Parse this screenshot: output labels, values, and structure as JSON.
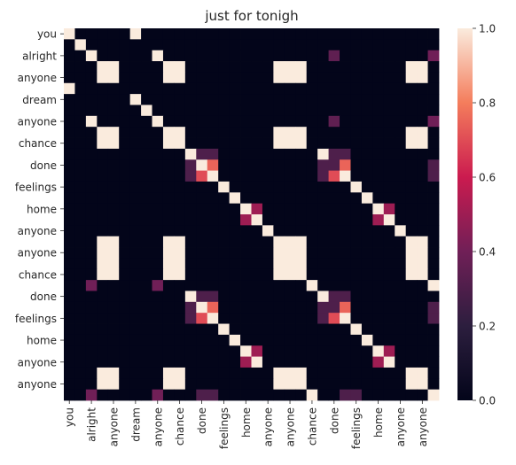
{
  "chart_data": {
    "type": "heatmap",
    "title": "just for tonigh",
    "labels": [
      "you",
      "",
      "alright",
      "",
      "anyone",
      "",
      "dream",
      "",
      "anyone",
      "",
      "chance",
      "",
      "done",
      "",
      "feelings",
      "",
      "home",
      "",
      "anyone",
      "",
      "anyone",
      "",
      "chance",
      "",
      "done",
      "",
      "feelings",
      "",
      "home",
      "",
      "anyone",
      "",
      "anyone",
      ""
    ],
    "x_tick_labels": [
      "you",
      "alright",
      "anyone",
      "dream",
      "anyone",
      "chance",
      "done",
      "feelings",
      "home",
      "anyone",
      "anyone",
      "chance",
      "done",
      "feelings",
      "home",
      "anyone",
      "anyone"
    ],
    "y_tick_labels": [
      "you",
      "alright",
      "anyone",
      "dream",
      "anyone",
      "chance",
      "done",
      "feelings",
      "home",
      "anyone",
      "anyone",
      "chance",
      "done",
      "feelings",
      "home",
      "anyone",
      "anyone"
    ],
    "matrix": [
      [
        1,
        0,
        0,
        0,
        0,
        0,
        1,
        0,
        0,
        0,
        0,
        0,
        0,
        0,
        0,
        0,
        0,
        0,
        0,
        0,
        0,
        0,
        0,
        0,
        0,
        0,
        0,
        0,
        0,
        0,
        0,
        0,
        0,
        0
      ],
      [
        0,
        1,
        0,
        0,
        0,
        0,
        0,
        0,
        0,
        0,
        0,
        0,
        0,
        0,
        0,
        0,
        0,
        0,
        0,
        0,
        0,
        0,
        0,
        0,
        0,
        0,
        0,
        0,
        0,
        0,
        0,
        0,
        0,
        0
      ],
      [
        0,
        0,
        1,
        0,
        0,
        0,
        0,
        0,
        1,
        0,
        0,
        0,
        0,
        0,
        0,
        0,
        0,
        0,
        0,
        0,
        0,
        0,
        0,
        0,
        0.35,
        0,
        0,
        0,
        0,
        0,
        0,
        0,
        0,
        0.4
      ],
      [
        0,
        0,
        0,
        1,
        1,
        0,
        0,
        0,
        0,
        1,
        1,
        0,
        0,
        0,
        0,
        0,
        0,
        0,
        0,
        1,
        1,
        1,
        0,
        0,
        0,
        0,
        0,
        0,
        0,
        0,
        0,
        1,
        1,
        0
      ],
      [
        0,
        0,
        0,
        1,
        1,
        0,
        0,
        0,
        0,
        1,
        1,
        0,
        0,
        0,
        0,
        0,
        0,
        0,
        0,
        1,
        1,
        1,
        0,
        0,
        0,
        0,
        0,
        0,
        0,
        0,
        0,
        1,
        1,
        0
      ],
      [
        1,
        0,
        0,
        0,
        0,
        0,
        0,
        0,
        0,
        0,
        0,
        0,
        0,
        0,
        0,
        0,
        0,
        0,
        0,
        0,
        0,
        0,
        0,
        0,
        0,
        0,
        0,
        0,
        0,
        0,
        0,
        0,
        0,
        0
      ],
      [
        0,
        0,
        0,
        0,
        0,
        0,
        1,
        0,
        0,
        0,
        0,
        0,
        0,
        0,
        0,
        0,
        0,
        0,
        0,
        0,
        0,
        0,
        0,
        0,
        0,
        0,
        0,
        0,
        0,
        0,
        0,
        0,
        0,
        0
      ],
      [
        0,
        0,
        0,
        0,
        0,
        0,
        0,
        1,
        0,
        0,
        0,
        0,
        0,
        0,
        0,
        0,
        0,
        0,
        0,
        0,
        0,
        0,
        0,
        0,
        0,
        0,
        0,
        0,
        0,
        0,
        0,
        0,
        0,
        0
      ],
      [
        0,
        0,
        1,
        0,
        0,
        0,
        0,
        0,
        1,
        0,
        0,
        0,
        0,
        0,
        0,
        0,
        0,
        0,
        0,
        0,
        0,
        0,
        0,
        0,
        0.35,
        0,
        0,
        0,
        0,
        0,
        0,
        0,
        0,
        0.4
      ],
      [
        0,
        0,
        0,
        1,
        1,
        0,
        0,
        0,
        0,
        1,
        1,
        0,
        0,
        0,
        0,
        0,
        0,
        0,
        0,
        1,
        1,
        1,
        0,
        0,
        0,
        0,
        0,
        0,
        0,
        0,
        0,
        1,
        1,
        0
      ],
      [
        0,
        0,
        0,
        1,
        1,
        0,
        0,
        0,
        0,
        1,
        1,
        0,
        0,
        0,
        0,
        0,
        0,
        0,
        0,
        1,
        1,
        1,
        0,
        0,
        0,
        0,
        0,
        0,
        0,
        0,
        0,
        1,
        1,
        0
      ],
      [
        0,
        0,
        0,
        0,
        0,
        0,
        0,
        0,
        0,
        0,
        0,
        1,
        0.3,
        0.3,
        0,
        0,
        0,
        0,
        0,
        0,
        0,
        0,
        0,
        1,
        0.3,
        0.3,
        0,
        0,
        0,
        0,
        0,
        0,
        0,
        0
      ],
      [
        0,
        0,
        0,
        0,
        0,
        0,
        0,
        0,
        0,
        0,
        0,
        0.3,
        1,
        0.75,
        0,
        0,
        0,
        0,
        0,
        0,
        0,
        0,
        0,
        0.3,
        0.3,
        0.75,
        0,
        0,
        0,
        0,
        0,
        0,
        0,
        0.3
      ],
      [
        0,
        0,
        0,
        0,
        0,
        0,
        0,
        0,
        0,
        0,
        0,
        0.3,
        0.7,
        1,
        0,
        0,
        0,
        0,
        0,
        0,
        0,
        0,
        0,
        0.3,
        0.7,
        1,
        0,
        0,
        0,
        0,
        0,
        0,
        0,
        0.3
      ],
      [
        0,
        0,
        0,
        0,
        0,
        0,
        0,
        0,
        0,
        0,
        0,
        0,
        0,
        0,
        1,
        0,
        0,
        0,
        0,
        0,
        0,
        0,
        0,
        0,
        0,
        0,
        1,
        0,
        0,
        0,
        0,
        0,
        0,
        0
      ],
      [
        0,
        0,
        0,
        0,
        0,
        0,
        0,
        0,
        0,
        0,
        0,
        0,
        0,
        0,
        0,
        1,
        0,
        0,
        0,
        0,
        0,
        0,
        0,
        0,
        0,
        0,
        0,
        1,
        0,
        0,
        0,
        0,
        0,
        0
      ],
      [
        0,
        0,
        0,
        0,
        0,
        0,
        0,
        0,
        0,
        0,
        0,
        0,
        0,
        0,
        0,
        0,
        1,
        0.5,
        0,
        0,
        0,
        0,
        0,
        0,
        0,
        0,
        0,
        0,
        1,
        0.5,
        0,
        0,
        0,
        0
      ],
      [
        0,
        0,
        0,
        0,
        0,
        0,
        0,
        0,
        0,
        0,
        0,
        0,
        0,
        0,
        0,
        0,
        0.5,
        1,
        0,
        0,
        0,
        0,
        0,
        0,
        0,
        0,
        0,
        0,
        0.5,
        1,
        0,
        0,
        0,
        0
      ],
      [
        0,
        0,
        0,
        0,
        0,
        0,
        0,
        0,
        0,
        0,
        0,
        0,
        0,
        0,
        0,
        0,
        0,
        0,
        1,
        0,
        0,
        0,
        0,
        0,
        0,
        0,
        0,
        0,
        0,
        0,
        1,
        0,
        0,
        0
      ],
      [
        0,
        0,
        0,
        1,
        1,
        0,
        0,
        0,
        0,
        1,
        1,
        0,
        0,
        0,
        0,
        0,
        0,
        0,
        0,
        1,
        1,
        1,
        0,
        0,
        0,
        0,
        0,
        0,
        0,
        0,
        0,
        1,
        1,
        0
      ],
      [
        0,
        0,
        0,
        1,
        1,
        0,
        0,
        0,
        0,
        1,
        1,
        0,
        0,
        0,
        0,
        0,
        0,
        0,
        0,
        1,
        1,
        1,
        0,
        0,
        0,
        0,
        0,
        0,
        0,
        0,
        0,
        1,
        1,
        0
      ],
      [
        0,
        0,
        0,
        1,
        1,
        0,
        0,
        0,
        0,
        1,
        1,
        0,
        0,
        0,
        0,
        0,
        0,
        0,
        0,
        1,
        1,
        1,
        0,
        0,
        0,
        0,
        0,
        0,
        0,
        0,
        0,
        1,
        1,
        0
      ],
      [
        0,
        0,
        0,
        1,
        1,
        0,
        0,
        0,
        0,
        1,
        1,
        0,
        0,
        0,
        0,
        0,
        0,
        0,
        0,
        1,
        1,
        1,
        0,
        0,
        0,
        0,
        0,
        0,
        0,
        0,
        0,
        1,
        1,
        0
      ],
      [
        0,
        0,
        0.4,
        0,
        0,
        0,
        0,
        0,
        0.4,
        0,
        0,
        0,
        0,
        0,
        0,
        0,
        0,
        0,
        0,
        0,
        0,
        0,
        1,
        0,
        0,
        0,
        0,
        0,
        0,
        0,
        0,
        0,
        0,
        1
      ],
      [
        0,
        0,
        0,
        0,
        0,
        0,
        0,
        0,
        0,
        0,
        0,
        1,
        0.3,
        0.3,
        0,
        0,
        0,
        0,
        0,
        0,
        0,
        0,
        0,
        1,
        0.3,
        0.3,
        0,
        0,
        0,
        0,
        0,
        0,
        0,
        0
      ],
      [
        0,
        0,
        0,
        0,
        0,
        0,
        0,
        0,
        0,
        0,
        0,
        0.3,
        1,
        0.75,
        0,
        0,
        0,
        0,
        0,
        0,
        0,
        0,
        0,
        0.3,
        0.3,
        0.75,
        0,
        0,
        0,
        0,
        0,
        0,
        0,
        0.3
      ],
      [
        0,
        0,
        0,
        0,
        0,
        0,
        0,
        0,
        0,
        0,
        0,
        0.3,
        0.7,
        1,
        0,
        0,
        0,
        0,
        0,
        0,
        0,
        0,
        0,
        0.3,
        0.7,
        1,
        0,
        0,
        0,
        0,
        0,
        0,
        0,
        0.3
      ],
      [
        0,
        0,
        0,
        0,
        0,
        0,
        0,
        0,
        0,
        0,
        0,
        0,
        0,
        0,
        1,
        0,
        0,
        0,
        0,
        0,
        0,
        0,
        0,
        0,
        0,
        0,
        1,
        0,
        0,
        0,
        0,
        0,
        0,
        0
      ],
      [
        0,
        0,
        0,
        0,
        0,
        0,
        0,
        0,
        0,
        0,
        0,
        0,
        0,
        0,
        0,
        1,
        0,
        0,
        0,
        0,
        0,
        0,
        0,
        0,
        0,
        0,
        0,
        1,
        0,
        0,
        0,
        0,
        0,
        0
      ],
      [
        0,
        0,
        0,
        0,
        0,
        0,
        0,
        0,
        0,
        0,
        0,
        0,
        0,
        0,
        0,
        0,
        1,
        0.5,
        0,
        0,
        0,
        0,
        0,
        0,
        0,
        0,
        0,
        0,
        1,
        0.5,
        0,
        0,
        0,
        0
      ],
      [
        0,
        0,
        0,
        0,
        0,
        0,
        0,
        0,
        0,
        0,
        0,
        0,
        0,
        0,
        0,
        0,
        0.5,
        1,
        0,
        0,
        0,
        0,
        0,
        0,
        0,
        0,
        0,
        0,
        0.5,
        1,
        0,
        0,
        0,
        0
      ],
      [
        0,
        0,
        0,
        1,
        1,
        0,
        0,
        0,
        0,
        1,
        1,
        0,
        0,
        0,
        0,
        0,
        0,
        0,
        0,
        1,
        1,
        1,
        0,
        0,
        0,
        0,
        0,
        0,
        0,
        0,
        0,
        1,
        1,
        0
      ],
      [
        0,
        0,
        0,
        1,
        1,
        0,
        0,
        0,
        0,
        1,
        1,
        0,
        0,
        0,
        0,
        0,
        0,
        0,
        0,
        1,
        1,
        1,
        0,
        0,
        0,
        0,
        0,
        0,
        0,
        0,
        0,
        1,
        1,
        0
      ],
      [
        0,
        0,
        0.4,
        0,
        0,
        0,
        0,
        0,
        0.4,
        0,
        0,
        0,
        0.3,
        0.3,
        0,
        0,
        0,
        0,
        0,
        0,
        0,
        0,
        1,
        0,
        0,
        0.3,
        0.3,
        0,
        0,
        0,
        0,
        0,
        0,
        1
      ]
    ],
    "colorbar": {
      "min": 0,
      "max": 1,
      "ticks": [
        "0.0",
        "0.2",
        "0.4",
        "0.6",
        "0.8",
        "1.0"
      ],
      "colormap": "rocket"
    },
    "grid": false,
    "legend": "colorbar-right"
  }
}
